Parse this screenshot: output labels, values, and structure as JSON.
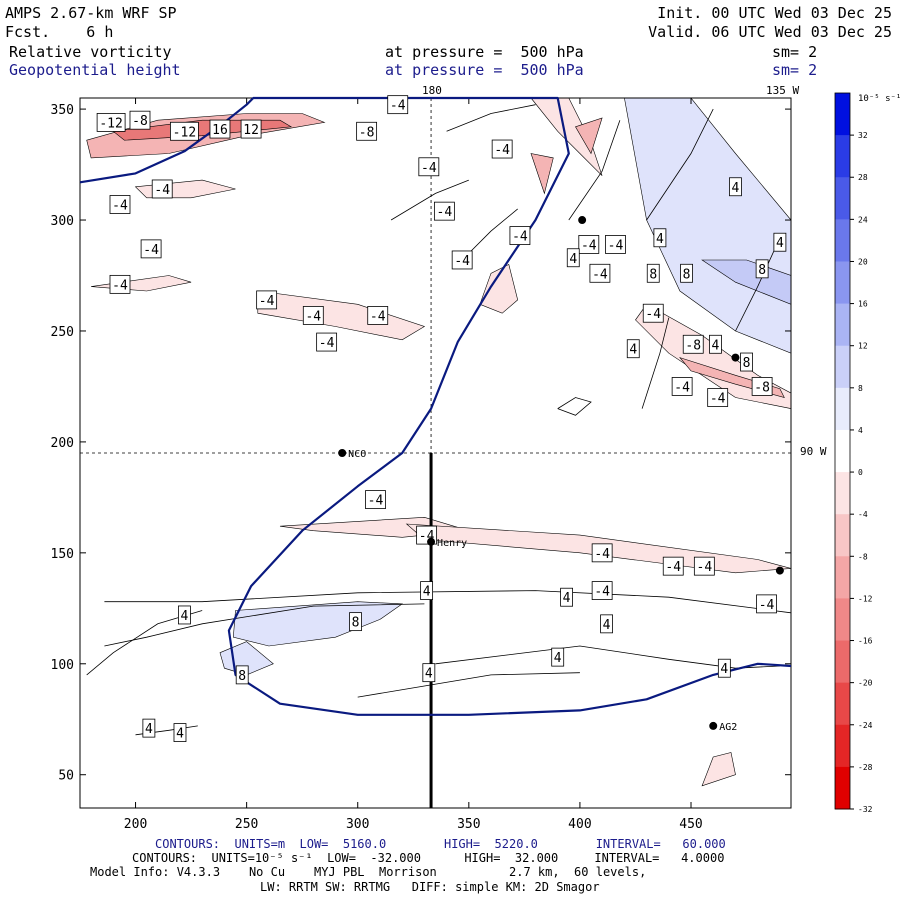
{
  "header": {
    "model": "AMPS 2.67-km WRF SP",
    "forecast": "Fcst.    6 h",
    "init": "Init. 00 UTC Wed 03 Dec 25",
    "valid": "Valid. 06 UTC Wed 03 Dec 25",
    "field1_name": "Relative vorticity",
    "field1_level": "at pressure =  500 hPa",
    "field1_smooth": "sm= 2",
    "field2_name": "Geopotential height",
    "field2_level": "at pressure =  500 hPa",
    "field2_smooth": "sm= 2"
  },
  "footer": {
    "line1": "CONTOURS:  UNITS=m  LOW=  5160.0        HIGH=  5220.0        INTERVAL=   60.000",
    "line2": "CONTOURS:  UNITS=10⁻⁵ s⁻¹  LOW=  -32.000      HIGH=  32.000     INTERVAL=   4.0000",
    "line3": "Model Info: V4.3.3    No Cu    MYJ PBL  Morrison          2.7 km,  60 levels,",
    "line4": "LW: RRTM SW: RRTMG   DIFF: simple KM: 2D Smagor"
  },
  "colorbar": {
    "unit_label": "10⁻⁵ s⁻¹",
    "ticks": [
      32,
      28,
      24,
      20,
      16,
      12,
      8,
      4,
      0,
      -4,
      -8,
      -12,
      -16,
      -20,
      -24,
      -28,
      -32
    ],
    "colors": [
      "#0010e0",
      "#2a3ce6",
      "#4a5ae8",
      "#6a78ec",
      "#8a96f0",
      "#aab4f4",
      "#cad0f8",
      "#e8ecfc",
      "#ffffff",
      "#fce4e4",
      "#f8c6c6",
      "#f4a6a6",
      "#f08888",
      "#ec6a6a",
      "#e84848",
      "#e42626",
      "#e00000"
    ]
  },
  "chart_data": {
    "type": "contour",
    "x_range": [
      175,
      495
    ],
    "y_range": [
      35,
      355
    ],
    "x_ticks": [
      200,
      250,
      300,
      350,
      400,
      450
    ],
    "y_ticks": [
      50,
      100,
      150,
      200,
      250,
      300,
      350
    ],
    "grid_line_labels": {
      "top_longitude": "180",
      "top_right_longitude": "135 W",
      "right_longitude": "90 W"
    },
    "reference_lines": {
      "vertical_x": 333,
      "horizontal_y": 195
    },
    "cross_section_line": {
      "x": 333,
      "y_start": 35,
      "y_end": 195
    },
    "stations": [
      {
        "name": "NCO",
        "x": 293,
        "y": 195
      },
      {
        "name": "Henry",
        "x": 333,
        "y": 155
      },
      {
        "name": "AG2",
        "x": 460,
        "y": 72
      },
      {
        "name": "",
        "x": 401,
        "y": 300
      },
      {
        "name": "",
        "x": 470,
        "y": 238
      },
      {
        "name": "",
        "x": 490,
        "y": 142
      }
    ],
    "height_contour": {
      "value_m": 5160,
      "points": [
        [
          175,
          317
        ],
        [
          200,
          321
        ],
        [
          222,
          331
        ],
        [
          240,
          344
        ],
        [
          250,
          352
        ],
        [
          253,
          355
        ],
        [
          390,
          355
        ],
        [
          395,
          330
        ],
        [
          380,
          300
        ],
        [
          360,
          270
        ],
        [
          345,
          245
        ],
        [
          333,
          215
        ],
        [
          320,
          195
        ],
        [
          300,
          180
        ],
        [
          275,
          160
        ],
        [
          252,
          135
        ],
        [
          242,
          115
        ],
        [
          245,
          95
        ],
        [
          265,
          82
        ],
        [
          300,
          77
        ],
        [
          350,
          77
        ],
        [
          400,
          79
        ],
        [
          430,
          84
        ],
        [
          460,
          95
        ],
        [
          480,
          100
        ],
        [
          495,
          99
        ]
      ]
    },
    "vorticity_labels": [
      {
        "text": "-12",
        "x": 189,
        "y": 344
      },
      {
        "text": "-8",
        "x": 202,
        "y": 345
      },
      {
        "text": "-12",
        "x": 222,
        "y": 340
      },
      {
        "text": "16",
        "x": 238,
        "y": 341
      },
      {
        "text": "12",
        "x": 252,
        "y": 341
      },
      {
        "text": "-8",
        "x": 304,
        "y": 340
      },
      {
        "text": "-4",
        "x": 318,
        "y": 352
      },
      {
        "text": "-4",
        "x": 332,
        "y": 324
      },
      {
        "text": "-4",
        "x": 365,
        "y": 332
      },
      {
        "text": "-4",
        "x": 212,
        "y": 314
      },
      {
        "text": "-4",
        "x": 193,
        "y": 307
      },
      {
        "text": "-4",
        "x": 339,
        "y": 304
      },
      {
        "text": "-4",
        "x": 373,
        "y": 293
      },
      {
        "text": "-4",
        "x": 207,
        "y": 287
      },
      {
        "text": "-4",
        "x": 193,
        "y": 271
      },
      {
        "text": "-4",
        "x": 347,
        "y": 282
      },
      {
        "text": "-4",
        "x": 404,
        "y": 289
      },
      {
        "text": "-4",
        "x": 416,
        "y": 289
      },
      {
        "text": "4",
        "x": 436,
        "y": 292
      },
      {
        "text": "4",
        "x": 490,
        "y": 290
      },
      {
        "text": "-4",
        "x": 409,
        "y": 276
      },
      {
        "text": "8",
        "x": 433,
        "y": 276
      },
      {
        "text": "8",
        "x": 448,
        "y": 276
      },
      {
        "text": "8",
        "x": 482,
        "y": 278
      },
      {
        "text": "-4",
        "x": 259,
        "y": 264
      },
      {
        "text": "-4",
        "x": 280,
        "y": 257
      },
      {
        "text": "-4",
        "x": 309,
        "y": 257
      },
      {
        "text": "-4",
        "x": 433,
        "y": 258
      },
      {
        "text": "-4",
        "x": 286,
        "y": 245
      },
      {
        "text": "4",
        "x": 424,
        "y": 242
      },
      {
        "text": "-8",
        "x": 451,
        "y": 244
      },
      {
        "text": "4",
        "x": 461,
        "y": 244
      },
      {
        "text": "8",
        "x": 475,
        "y": 236
      },
      {
        "text": "-4",
        "x": 446,
        "y": 225
      },
      {
        "text": "-4",
        "x": 462,
        "y": 220
      },
      {
        "text": "-8",
        "x": 482,
        "y": 225
      },
      {
        "text": "-4",
        "x": 308,
        "y": 174
      },
      {
        "text": "-4",
        "x": 331,
        "y": 158
      },
      {
        "text": "-4",
        "x": 410,
        "y": 150
      },
      {
        "text": "-4",
        "x": 442,
        "y": 144
      },
      {
        "text": "-4",
        "x": 456,
        "y": 144
      },
      {
        "text": "-4",
        "x": 410,
        "y": 133
      },
      {
        "text": "-4",
        "x": 484,
        "y": 127
      },
      {
        "text": "4",
        "x": 222,
        "y": 122
      },
      {
        "text": "4",
        "x": 331,
        "y": 133
      },
      {
        "text": "4",
        "x": 394,
        "y": 130
      },
      {
        "text": "4",
        "x": 412,
        "y": 118
      },
      {
        "text": "4",
        "x": 390,
        "y": 103
      },
      {
        "text": "8",
        "x": 299,
        "y": 119
      },
      {
        "text": "8",
        "x": 248,
        "y": 95
      },
      {
        "text": "4",
        "x": 332,
        "y": 96
      },
      {
        "text": "4",
        "x": 465,
        "y": 98
      },
      {
        "text": "4",
        "x": 220,
        "y": 69
      },
      {
        "text": "4",
        "x": 206,
        "y": 71
      },
      {
        "text": "4",
        "x": 470,
        "y": 315
      },
      {
        "text": "4",
        "x": 397,
        "y": 283
      }
    ]
  }
}
